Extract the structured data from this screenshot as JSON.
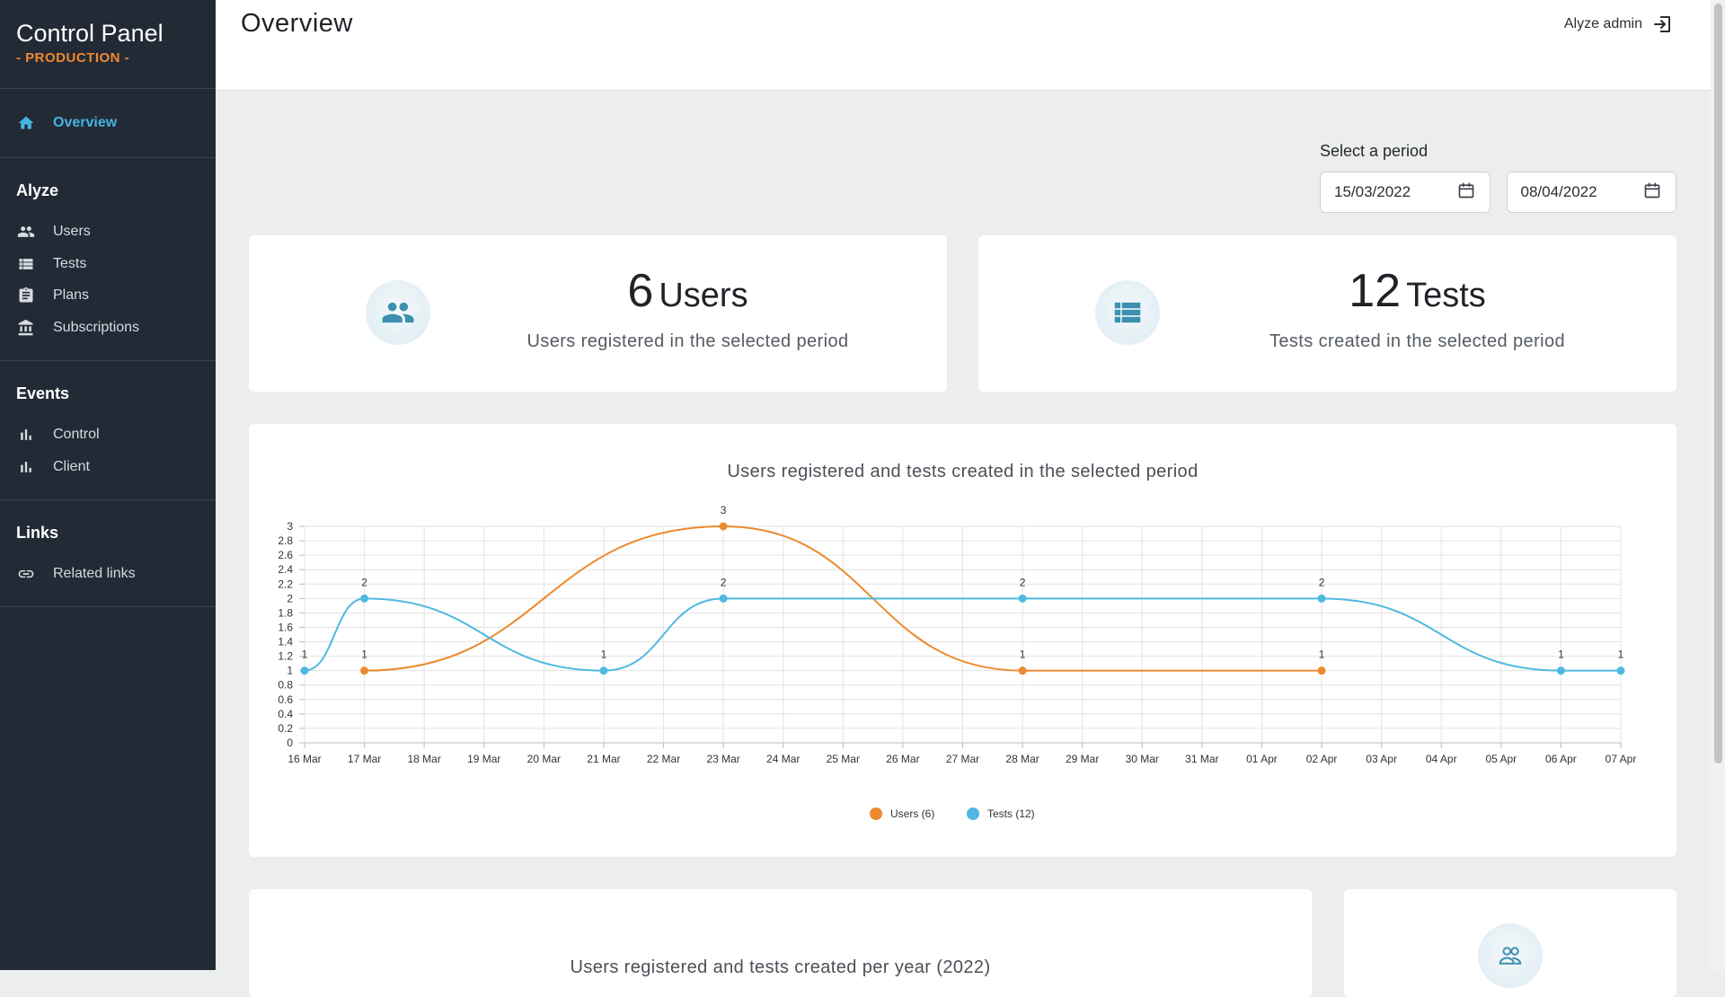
{
  "sidebar": {
    "brand_title": "Control Panel",
    "brand_env": "- PRODUCTION -",
    "overview_label": "Overview",
    "sections": [
      {
        "title": "Alyze",
        "items": [
          "Users",
          "Tests",
          "Plans",
          "Subscriptions"
        ]
      },
      {
        "title": "Events",
        "items": [
          "Control",
          "Client"
        ]
      },
      {
        "title": "Links",
        "items": [
          "Related links"
        ]
      }
    ]
  },
  "header": {
    "title": "Overview",
    "user_name": "Alyze admin"
  },
  "period": {
    "label": "Select a period",
    "start_date": "15/03/2022",
    "end_date": "08/04/2022"
  },
  "stats": [
    {
      "number": "6",
      "unit": "Users",
      "description": "Users registered in the selected period",
      "icon": "users-icon"
    },
    {
      "number": "12",
      "unit": "Tests",
      "description": "Tests created in the selected period",
      "icon": "list-icon"
    }
  ],
  "bottom": {
    "chart_title": "Users registered and tests created per year (2022)"
  },
  "colors": {
    "accent": "#46b4e0",
    "production": "#f0892d",
    "users_series": "#ec8a2f",
    "tests_series": "#4fb9e0",
    "icon": "#3d8fb0"
  },
  "chart_data": {
    "type": "line",
    "title": "Users registered and tests created in the selected period",
    "categories": [
      "16 Mar",
      "17 Mar",
      "18 Mar",
      "19 Mar",
      "20 Mar",
      "21 Mar",
      "22 Mar",
      "23 Mar",
      "24 Mar",
      "25 Mar",
      "26 Mar",
      "27 Mar",
      "28 Mar",
      "29 Mar",
      "30 Mar",
      "31 Mar",
      "01 Apr",
      "02 Apr",
      "03 Apr",
      "04 Apr",
      "05 Apr",
      "06 Apr",
      "07 Apr"
    ],
    "yticks": [
      "0",
      "0.2",
      "0.4",
      "0.6",
      "0.8",
      "1",
      "1.2",
      "1.4",
      "1.6",
      "1.8",
      "2",
      "2.2",
      "2.4",
      "2.6",
      "2.8",
      "3"
    ],
    "ylim": [
      0,
      3
    ],
    "grid": true,
    "legend_position": "bottom-center",
    "series": [
      {
        "name": "Users (6)",
        "color": "#ec8a2f",
        "points": [
          {
            "x": "17 Mar",
            "y": 1
          },
          {
            "x": "23 Mar",
            "y": 3
          },
          {
            "x": "28 Mar",
            "y": 1
          },
          {
            "x": "02 Apr",
            "y": 1
          }
        ]
      },
      {
        "name": "Tests (12)",
        "color": "#4fb9e0",
        "points": [
          {
            "x": "16 Mar",
            "y": 1
          },
          {
            "x": "17 Mar",
            "y": 2
          },
          {
            "x": "21 Mar",
            "y": 1
          },
          {
            "x": "23 Mar",
            "y": 2
          },
          {
            "x": "28 Mar",
            "y": 2
          },
          {
            "x": "02 Apr",
            "y": 2
          },
          {
            "x": "06 Apr",
            "y": 1
          },
          {
            "x": "07 Apr",
            "y": 1
          }
        ]
      }
    ]
  }
}
